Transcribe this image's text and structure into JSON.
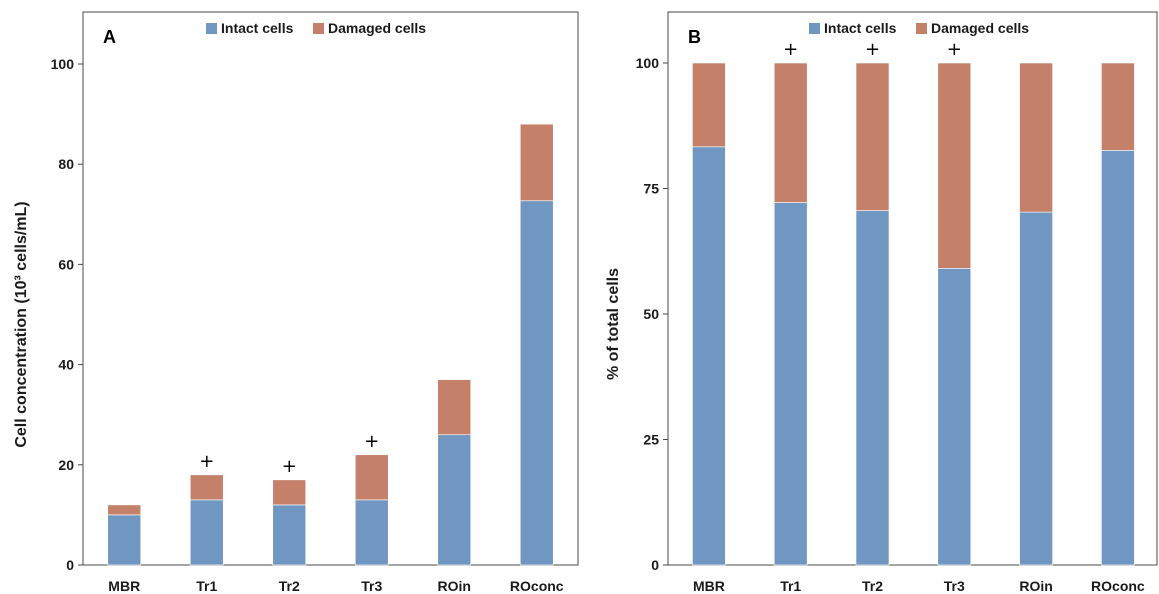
{
  "colors": {
    "intact": "#7097C2",
    "damaged": "#C5806A",
    "frame": "#4a4a4a"
  },
  "chart_data": [
    {
      "panel": "A",
      "type": "bar",
      "stacked": true,
      "categories": [
        "MBR",
        "Tr1",
        "Tr2",
        "Tr3",
        "ROin",
        "ROconc"
      ],
      "series": [
        {
          "name": "Intact cells",
          "values": [
            10,
            13,
            12,
            13,
            26,
            72.7
          ]
        },
        {
          "name": "Damaged cells",
          "values": [
            2,
            5,
            5,
            9,
            11,
            15.3
          ]
        }
      ],
      "annotations": [
        "",
        "+",
        "+",
        "+",
        "",
        ""
      ],
      "ylabel": "Cell concentration (10³ cells/mL)",
      "xlabel": "",
      "ylim": [
        0,
        100
      ],
      "yticks": [
        0,
        20,
        40,
        60,
        80,
        100
      ],
      "legend": "top-center",
      "grid": false
    },
    {
      "panel": "B",
      "type": "bar",
      "stacked": true,
      "categories": [
        "MBR",
        "Tr1",
        "Tr2",
        "Tr3",
        "ROin",
        "ROconc"
      ],
      "series": [
        {
          "name": "Intact cells",
          "values": [
            83.3,
            72.2,
            70.6,
            59.1,
            70.3,
            82.6
          ]
        },
        {
          "name": "Damaged cells",
          "values": [
            16.7,
            27.8,
            29.4,
            40.9,
            29.7,
            17.4
          ]
        }
      ],
      "annotations": [
        "",
        "+",
        "+",
        "+",
        "",
        ""
      ],
      "ylabel": "% of total cells",
      "xlabel": "",
      "ylim": [
        0,
        100
      ],
      "yticks": [
        0,
        25,
        50,
        75,
        100
      ],
      "legend": "top-center",
      "grid": false
    }
  ]
}
